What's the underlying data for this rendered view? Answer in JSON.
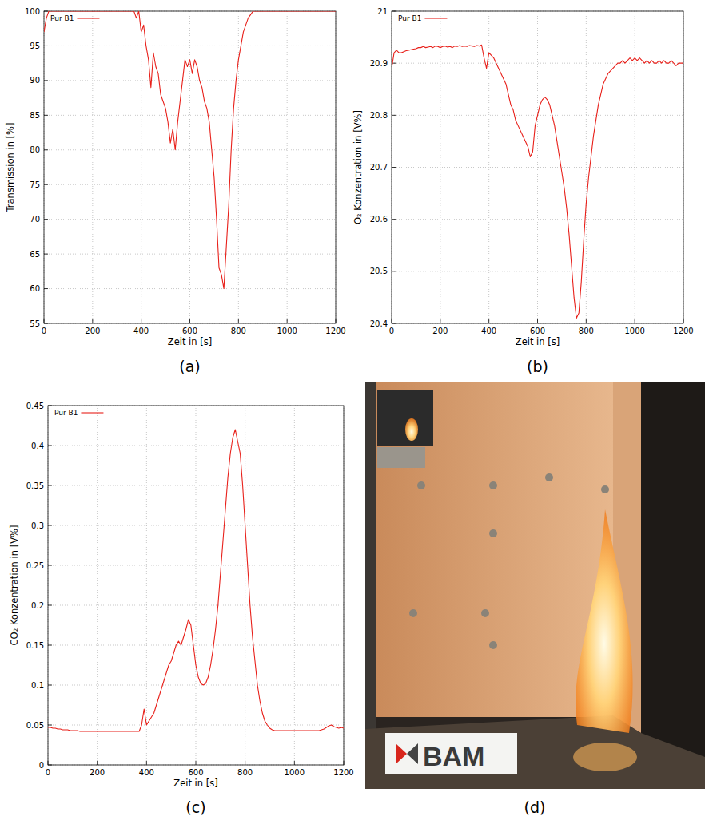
{
  "chart_data": [
    {
      "type": "line",
      "caption": "(a)",
      "x_label": "Zeit in [s]",
      "y_label": "Transmission in [%]",
      "x": [
        0,
        10,
        20,
        30,
        40,
        50,
        60,
        70,
        80,
        90,
        100,
        110,
        120,
        130,
        140,
        150,
        160,
        170,
        180,
        190,
        200,
        210,
        220,
        230,
        240,
        250,
        260,
        270,
        280,
        290,
        300,
        310,
        320,
        330,
        340,
        350,
        360,
        370,
        380,
        390,
        400,
        410,
        420,
        430,
        440,
        450,
        460,
        470,
        480,
        490,
        500,
        510,
        520,
        530,
        540,
        550,
        560,
        570,
        580,
        590,
        600,
        610,
        620,
        630,
        640,
        650,
        660,
        670,
        680,
        690,
        700,
        710,
        720,
        730,
        740,
        750,
        760,
        770,
        780,
        790,
        800,
        810,
        820,
        830,
        840,
        850,
        860,
        870,
        880,
        890,
        900,
        910,
        920,
        930,
        940,
        950,
        960,
        970,
        980,
        990,
        1000,
        1010,
        1020,
        1030,
        1040,
        1050,
        1060,
        1070,
        1080,
        1090,
        1100,
        1110,
        1120,
        1130,
        1140,
        1150,
        1160,
        1170,
        1180,
        1190,
        1200
      ],
      "series": [
        {
          "name": "Pur B1",
          "color": "#e8201a",
          "values": [
            97,
            99,
            100,
            100,
            100,
            100,
            100,
            100,
            100,
            100,
            100,
            100,
            100,
            100,
            100,
            100,
            100,
            100,
            100,
            100,
            100,
            100,
            100,
            100,
            100,
            100,
            100,
            100,
            100,
            100,
            100,
            100,
            100,
            100,
            100,
            100,
            100,
            100,
            99,
            100,
            97,
            98,
            95,
            93,
            89,
            94,
            92,
            91,
            88,
            87,
            86,
            84,
            81,
            83,
            80,
            84,
            87,
            90,
            93,
            92,
            93,
            91,
            93,
            92,
            90,
            89,
            87,
            86,
            84,
            80,
            76,
            70,
            63,
            62,
            60,
            66,
            72,
            80,
            86,
            90,
            93,
            95,
            97,
            98,
            99,
            99.5,
            100,
            100,
            100,
            100,
            100,
            100,
            100,
            100,
            100,
            100,
            100,
            100,
            100,
            100,
            100,
            100,
            100,
            100,
            100,
            100,
            100,
            100,
            100,
            100,
            100,
            100,
            100,
            100,
            100,
            100,
            100,
            100,
            100,
            100,
            100
          ]
        }
      ],
      "xlim": [
        0,
        1200
      ],
      "ylim": [
        55,
        100
      ],
      "xticks": [
        0,
        200,
        400,
        600,
        800,
        1000,
        1200
      ],
      "yticks": [
        55,
        60,
        65,
        70,
        75,
        80,
        85,
        90,
        95,
        100
      ],
      "grid": true,
      "legend": "upper left"
    },
    {
      "type": "line",
      "caption": "(b)",
      "x_label": "Zeit in [s]",
      "y_label": "O₂ Konzentration in [V%]",
      "x": [
        0,
        10,
        20,
        30,
        40,
        50,
        60,
        70,
        80,
        90,
        100,
        110,
        120,
        130,
        140,
        150,
        160,
        170,
        180,
        190,
        200,
        210,
        220,
        230,
        240,
        250,
        260,
        270,
        280,
        290,
        300,
        310,
        320,
        330,
        340,
        350,
        360,
        370,
        380,
        390,
        400,
        410,
        420,
        430,
        440,
        450,
        460,
        470,
        480,
        490,
        500,
        510,
        520,
        530,
        540,
        550,
        560,
        570,
        580,
        590,
        600,
        610,
        620,
        630,
        640,
        650,
        660,
        670,
        680,
        690,
        700,
        710,
        720,
        730,
        740,
        750,
        760,
        770,
        780,
        790,
        800,
        810,
        820,
        830,
        840,
        850,
        860,
        870,
        880,
        890,
        900,
        910,
        920,
        930,
        940,
        950,
        960,
        970,
        980,
        990,
        1000,
        1010,
        1020,
        1030,
        1040,
        1050,
        1060,
        1070,
        1080,
        1090,
        1100,
        1110,
        1120,
        1130,
        1140,
        1150,
        1160,
        1170,
        1180,
        1190,
        1200
      ],
      "series": [
        {
          "name": "Pur B1",
          "color": "#e8201a",
          "values": [
            20.89,
            20.92,
            20.925,
            20.92,
            20.92,
            20.922,
            20.924,
            20.925,
            20.926,
            20.927,
            20.928,
            20.93,
            20.93,
            20.932,
            20.93,
            20.931,
            20.932,
            20.93,
            20.933,
            20.932,
            20.93,
            20.932,
            20.933,
            20.931,
            20.932,
            20.93,
            20.933,
            20.932,
            20.934,
            20.932,
            20.933,
            20.932,
            20.934,
            20.933,
            20.932,
            20.934,
            20.933,
            20.935,
            20.91,
            20.89,
            20.92,
            20.915,
            20.91,
            20.9,
            20.89,
            20.88,
            20.87,
            20.86,
            20.84,
            20.82,
            20.81,
            20.79,
            20.78,
            20.77,
            20.76,
            20.75,
            20.74,
            20.72,
            20.73,
            20.78,
            20.8,
            20.82,
            20.83,
            20.835,
            20.83,
            20.82,
            20.8,
            20.78,
            20.75,
            20.72,
            20.69,
            20.66,
            20.62,
            20.57,
            20.51,
            20.45,
            20.41,
            20.42,
            20.48,
            20.56,
            20.63,
            20.68,
            20.72,
            20.76,
            20.79,
            20.82,
            20.84,
            20.86,
            20.87,
            20.88,
            20.885,
            20.89,
            20.895,
            20.9,
            20.9,
            20.905,
            20.9,
            20.905,
            20.91,
            20.905,
            20.91,
            20.905,
            20.91,
            20.905,
            20.9,
            20.905,
            20.9,
            20.905,
            20.9,
            20.9,
            20.905,
            20.9,
            20.905,
            20.9,
            20.9,
            20.905,
            20.9,
            20.895,
            20.9,
            20.9,
            20.9
          ]
        }
      ],
      "xlim": [
        0,
        1200
      ],
      "ylim": [
        20.4,
        21
      ],
      "xticks": [
        0,
        200,
        400,
        600,
        800,
        1000,
        1200
      ],
      "yticks": [
        20.4,
        20.5,
        20.6,
        20.7,
        20.8,
        20.9,
        21
      ],
      "grid": true,
      "legend": "upper left"
    },
    {
      "type": "line",
      "caption": "(c)",
      "x_label": "Zeit in [s]",
      "y_label": "CO₂ Konzentration in [V%]",
      "x": [
        0,
        10,
        20,
        30,
        40,
        50,
        60,
        70,
        80,
        90,
        100,
        110,
        120,
        130,
        140,
        150,
        160,
        170,
        180,
        190,
        200,
        210,
        220,
        230,
        240,
        250,
        260,
        270,
        280,
        290,
        300,
        310,
        320,
        330,
        340,
        350,
        360,
        370,
        380,
        390,
        400,
        410,
        420,
        430,
        440,
        450,
        460,
        470,
        480,
        490,
        500,
        510,
        520,
        530,
        540,
        550,
        560,
        570,
        580,
        590,
        600,
        610,
        620,
        630,
        640,
        650,
        660,
        670,
        680,
        690,
        700,
        710,
        720,
        730,
        740,
        750,
        760,
        770,
        780,
        790,
        800,
        810,
        820,
        830,
        840,
        850,
        860,
        870,
        880,
        890,
        900,
        910,
        920,
        930,
        940,
        950,
        960,
        970,
        980,
        990,
        1000,
        1010,
        1020,
        1030,
        1040,
        1050,
        1060,
        1070,
        1080,
        1090,
        1100,
        1110,
        1120,
        1130,
        1140,
        1150,
        1160,
        1170,
        1180,
        1190,
        1200
      ],
      "series": [
        {
          "name": "Pur B1",
          "color": "#e8201a",
          "values": [
            0.047,
            0.047,
            0.046,
            0.046,
            0.045,
            0.045,
            0.044,
            0.044,
            0.044,
            0.043,
            0.043,
            0.043,
            0.043,
            0.042,
            0.042,
            0.042,
            0.042,
            0.042,
            0.042,
            0.042,
            0.042,
            0.042,
            0.042,
            0.042,
            0.042,
            0.042,
            0.042,
            0.042,
            0.042,
            0.042,
            0.042,
            0.042,
            0.042,
            0.042,
            0.042,
            0.042,
            0.042,
            0.042,
            0.05,
            0.07,
            0.05,
            0.055,
            0.06,
            0.065,
            0.075,
            0.085,
            0.095,
            0.105,
            0.115,
            0.125,
            0.13,
            0.14,
            0.15,
            0.155,
            0.15,
            0.16,
            0.17,
            0.182,
            0.175,
            0.15,
            0.125,
            0.11,
            0.102,
            0.1,
            0.102,
            0.11,
            0.125,
            0.145,
            0.17,
            0.2,
            0.24,
            0.28,
            0.32,
            0.36,
            0.39,
            0.41,
            0.42,
            0.405,
            0.39,
            0.35,
            0.3,
            0.25,
            0.2,
            0.16,
            0.13,
            0.1,
            0.08,
            0.065,
            0.055,
            0.05,
            0.046,
            0.044,
            0.043,
            0.043,
            0.043,
            0.043,
            0.043,
            0.043,
            0.043,
            0.043,
            0.043,
            0.043,
            0.043,
            0.043,
            0.043,
            0.043,
            0.043,
            0.043,
            0.043,
            0.043,
            0.043,
            0.044,
            0.045,
            0.047,
            0.049,
            0.05,
            0.048,
            0.047,
            0.046,
            0.047,
            0.046
          ]
        }
      ],
      "xlim": [
        0,
        1200
      ],
      "ylim": [
        0,
        0.45
      ],
      "xticks": [
        0,
        200,
        400,
        600,
        800,
        1000,
        1200
      ],
      "yticks": [
        0,
        0.05,
        0.1,
        0.15,
        0.2,
        0.25,
        0.3,
        0.35,
        0.4,
        0.45
      ],
      "grid": true,
      "legend": "upper left"
    }
  ],
  "photo": {
    "caption": "(d)",
    "sign_text": "BAM"
  }
}
